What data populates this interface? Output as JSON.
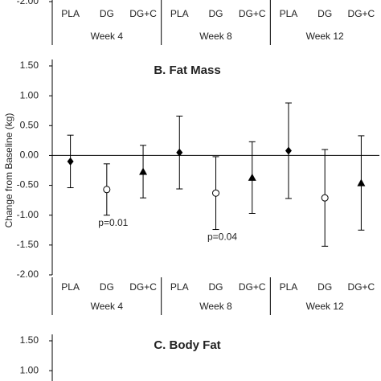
{
  "chart_data": [
    {
      "type": "errorbar",
      "categories": [
        "PLA",
        "DG",
        "DG+C",
        "PLA",
        "DG",
        "DG+C",
        "PLA",
        "DG",
        "DG+C"
      ],
      "groups": [
        "Week 4",
        "Week 8",
        "Week 12"
      ],
      "ylim": [
        -2,
        1.5
      ],
      "yticks": [
        {
          "value": -2,
          "label": "-2.00"
        }
      ]
    },
    {
      "type": "errorbar",
      "title": "B. Fat Mass",
      "y_label": "Change from Baseline (kg)",
      "categories": [
        "PLA",
        "DG",
        "DG+C",
        "PLA",
        "DG",
        "DG+C",
        "PLA",
        "DG",
        "DG+C"
      ],
      "groups": [
        "Week 4",
        "Week 8",
        "Week 12"
      ],
      "values": [
        -0.1,
        -0.57,
        -0.27,
        0.05,
        -0.63,
        -0.37,
        0.08,
        -0.71,
        -0.46
      ],
      "errors": [
        0.44,
        0.43,
        0.44,
        0.61,
        0.61,
        0.6,
        0.8,
        0.81,
        0.79
      ],
      "markers": [
        "diamond",
        "circle",
        "triangle",
        "diamond",
        "circle",
        "triangle",
        "diamond",
        "circle",
        "triangle"
      ],
      "annotations": [
        {
          "index": 1,
          "text": "p=0.01"
        },
        {
          "index": 4,
          "text": "p=0.04"
        }
      ],
      "color": "#000000",
      "zero_line": true,
      "ylim": [
        -2,
        1.5
      ],
      "yticks": [
        {
          "value": -2,
          "label": "-2.00"
        },
        {
          "value": -1.5,
          "label": "-1.50"
        },
        {
          "value": -1,
          "label": "-1.00"
        },
        {
          "value": -0.5,
          "label": "-0.50"
        },
        {
          "value": 0,
          "label": "0.00"
        },
        {
          "value": 0.5,
          "label": "0.50"
        },
        {
          "value": 1,
          "label": "1.00"
        },
        {
          "value": 1.5,
          "label": "1.50"
        }
      ]
    },
    {
      "type": "errorbar",
      "title": "C. Body Fat",
      "ylim": [
        -2,
        1.5
      ],
      "yticks": [
        {
          "value": 1,
          "label": "1.00"
        },
        {
          "value": 1.5,
          "label": "1.50"
        }
      ]
    }
  ]
}
